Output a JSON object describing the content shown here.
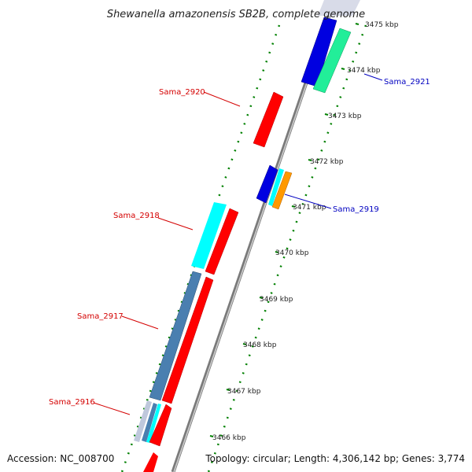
{
  "title": "Shewanella amazonensis SB2B, complete genome",
  "ticks": [
    {
      "label": "3475 kbp"
    },
    {
      "label": "3474 kbp"
    },
    {
      "label": "3473 kbp"
    },
    {
      "label": "3472 kbp"
    },
    {
      "label": "3471 kbp"
    },
    {
      "label": "3470 kbp"
    },
    {
      "label": "3469 kbp"
    },
    {
      "label": "3468 kbp"
    },
    {
      "label": "3467 kbp"
    },
    {
      "label": "3466 kbp"
    }
  ],
  "gene_labels": {
    "sama_2921": "Sama_2921",
    "sama_2920": "Sama_2920",
    "sama_2919": "Sama_2919",
    "sama_2918": "Sama_2918",
    "sama_2917": "Sama_2917",
    "sama_2916": "Sama_2916"
  },
  "colors": {
    "forward_cds": "#ff0000",
    "reverse_cds": "#0000e0",
    "cog_cyan": "#00ffff",
    "cog_green": "#22ee99",
    "cog_steelblue": "#4a7fb0",
    "cog_orange": "#ff9900",
    "backbone": "#8a8a8a",
    "gc_dots": "#008000",
    "label_forward": "#d40000",
    "label_reverse": "#0000c0"
  },
  "footer": {
    "accession": "Accession: NC_008700",
    "summary": "Topology: circular; Length: 4,306,142 bp; Genes: 3,774"
  }
}
